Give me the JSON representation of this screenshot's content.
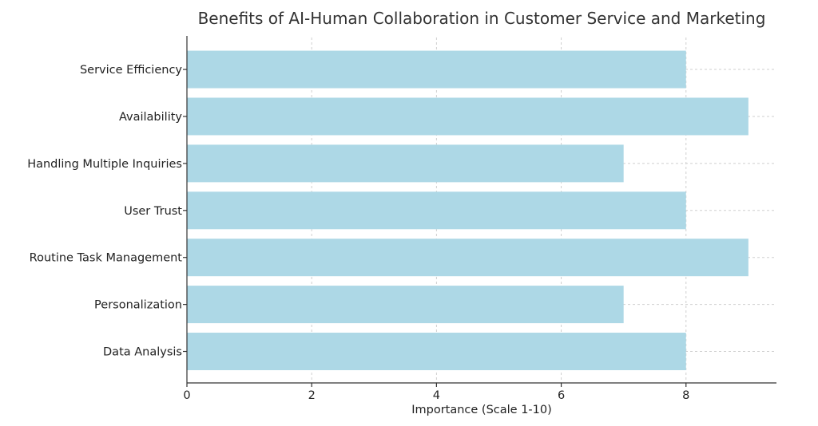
{
  "chart_data": {
    "type": "bar",
    "orientation": "horizontal",
    "title": "Benefits of AI-Human Collaboration in Customer Service and Marketing",
    "xlabel": "Importance (Scale 1-10)",
    "ylabel": "",
    "categories": [
      "Service Efficiency",
      "Availability",
      "Handling Multiple Inquiries",
      "User Trust",
      "Routine Task Management",
      "Personalization",
      "Data Analysis"
    ],
    "values": [
      8,
      9,
      7,
      8,
      9,
      7,
      8
    ],
    "xlim": [
      0,
      9.45
    ],
    "xticks": [
      0,
      2,
      4,
      6,
      8
    ],
    "grid": true,
    "bar_color": "#add8e6"
  }
}
